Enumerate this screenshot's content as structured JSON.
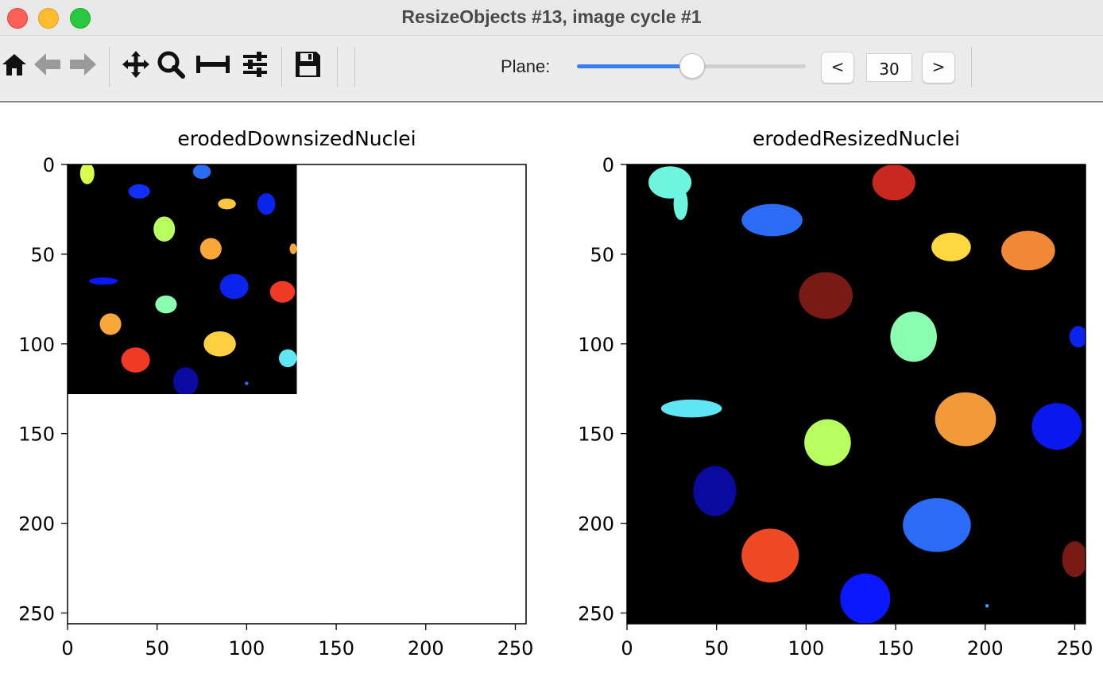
{
  "window": {
    "title": "ResizeObjects #13, image cycle #1"
  },
  "toolbar": {
    "icons": [
      "home-icon",
      "back-arrow-icon",
      "forward-arrow-icon",
      "pan-icon",
      "zoom-icon",
      "subplots-icon",
      "configure-icon",
      "save-icon"
    ],
    "plane_label": "Plane:",
    "plane_prev": "<",
    "plane_next": ">",
    "plane_value": "30",
    "plane_fraction": 0.5
  },
  "colors": {
    "background": "#000000",
    "accent": "#3b7ef0"
  },
  "plots": [
    {
      "title": "erodedDownsizedNuclei",
      "x_ticks": [
        "0",
        "50",
        "100",
        "150",
        "200",
        "250"
      ],
      "y_ticks": [
        "0",
        "50",
        "100",
        "150",
        "200",
        "250"
      ],
      "data_extent": [
        128,
        128
      ],
      "axis_limit": 256,
      "blobs": [
        {
          "x": 11,
          "y": 5,
          "rx": 4,
          "ry": 6,
          "color": "#d8ff4a"
        },
        {
          "x": 40,
          "y": 15,
          "rx": 6,
          "ry": 4,
          "color": "#1030ff"
        },
        {
          "x": 75,
          "y": 4,
          "rx": 5,
          "ry": 4,
          "color": "#2a6cf5"
        },
        {
          "x": 89,
          "y": 22,
          "rx": 5,
          "ry": 3,
          "color": "#ffc640"
        },
        {
          "x": 111,
          "y": 22,
          "rx": 5,
          "ry": 6,
          "color": "#0a24ee"
        },
        {
          "x": 54,
          "y": 36,
          "rx": 6,
          "ry": 7,
          "color": "#b8ff60"
        },
        {
          "x": 80,
          "y": 47,
          "rx": 6,
          "ry": 6,
          "color": "#f7a838"
        },
        {
          "x": 126,
          "y": 47,
          "rx": 2,
          "ry": 3,
          "color": "#f7a838"
        },
        {
          "x": 20,
          "y": 65,
          "rx": 8,
          "ry": 2,
          "color": "#0a18ff"
        },
        {
          "x": 93,
          "y": 68,
          "rx": 8,
          "ry": 7,
          "color": "#0a24ee"
        },
        {
          "x": 120,
          "y": 71,
          "rx": 7,
          "ry": 6,
          "color": "#f03a24"
        },
        {
          "x": 55,
          "y": 78,
          "rx": 6,
          "ry": 5,
          "color": "#8affb0"
        },
        {
          "x": 24,
          "y": 89,
          "rx": 6,
          "ry": 6,
          "color": "#f7a838"
        },
        {
          "x": 85,
          "y": 100,
          "rx": 9,
          "ry": 7,
          "color": "#ffd040"
        },
        {
          "x": 38,
          "y": 109,
          "rx": 8,
          "ry": 7,
          "color": "#f03a24"
        },
        {
          "x": 123,
          "y": 108,
          "rx": 5,
          "ry": 5,
          "color": "#5ee6f5"
        },
        {
          "x": 66,
          "y": 121,
          "rx": 7,
          "ry": 8,
          "color": "#0a0aa0"
        },
        {
          "x": 100,
          "y": 122,
          "rx": 1,
          "ry": 1,
          "color": "#2a6cf5"
        }
      ]
    },
    {
      "title": "erodedResizedNuclei",
      "x_ticks": [
        "0",
        "50",
        "100",
        "150",
        "200",
        "250"
      ],
      "y_ticks": [
        "0",
        "50",
        "100",
        "150",
        "200",
        "250"
      ],
      "data_extent": [
        256,
        256
      ],
      "axis_limit": 256,
      "blobs": [
        {
          "x": 24,
          "y": 10,
          "rx": 12,
          "ry": 9,
          "color": "#6ef5e0"
        },
        {
          "x": 30,
          "y": 22,
          "rx": 4,
          "ry": 9,
          "color": "#6ef5e0"
        },
        {
          "x": 149,
          "y": 10,
          "rx": 12,
          "ry": 10,
          "color": "#c8281e"
        },
        {
          "x": 81,
          "y": 31,
          "rx": 17,
          "ry": 9,
          "color": "#2a6cf5"
        },
        {
          "x": 181,
          "y": 46,
          "rx": 11,
          "ry": 8,
          "color": "#ffd840"
        },
        {
          "x": 224,
          "y": 48,
          "rx": 15,
          "ry": 11,
          "color": "#f08838"
        },
        {
          "x": 111,
          "y": 73,
          "rx": 15,
          "ry": 13,
          "color": "#7a1a14"
        },
        {
          "x": 160,
          "y": 96,
          "rx": 13,
          "ry": 14,
          "color": "#8affb0"
        },
        {
          "x": 252,
          "y": 96,
          "rx": 5,
          "ry": 6,
          "color": "#0a24ee"
        },
        {
          "x": 36,
          "y": 136,
          "rx": 17,
          "ry": 5,
          "color": "#5ee6f5"
        },
        {
          "x": 189,
          "y": 142,
          "rx": 17,
          "ry": 15,
          "color": "#f29a3a"
        },
        {
          "x": 240,
          "y": 146,
          "rx": 14,
          "ry": 13,
          "color": "#0a18ee"
        },
        {
          "x": 112,
          "y": 155,
          "rx": 13,
          "ry": 13,
          "color": "#b8ff60"
        },
        {
          "x": 49,
          "y": 182,
          "rx": 12,
          "ry": 14,
          "color": "#0a0aa0"
        },
        {
          "x": 173,
          "y": 201,
          "rx": 19,
          "ry": 15,
          "color": "#2a6cf5"
        },
        {
          "x": 80,
          "y": 218,
          "rx": 16,
          "ry": 15,
          "color": "#f04a24"
        },
        {
          "x": 250,
          "y": 220,
          "rx": 7,
          "ry": 10,
          "color": "#7a1a14"
        },
        {
          "x": 133,
          "y": 242,
          "rx": 14,
          "ry": 14,
          "color": "#0a18ff"
        },
        {
          "x": 201,
          "y": 246,
          "rx": 1,
          "ry": 1,
          "color": "#3a9cff"
        }
      ]
    }
  ]
}
